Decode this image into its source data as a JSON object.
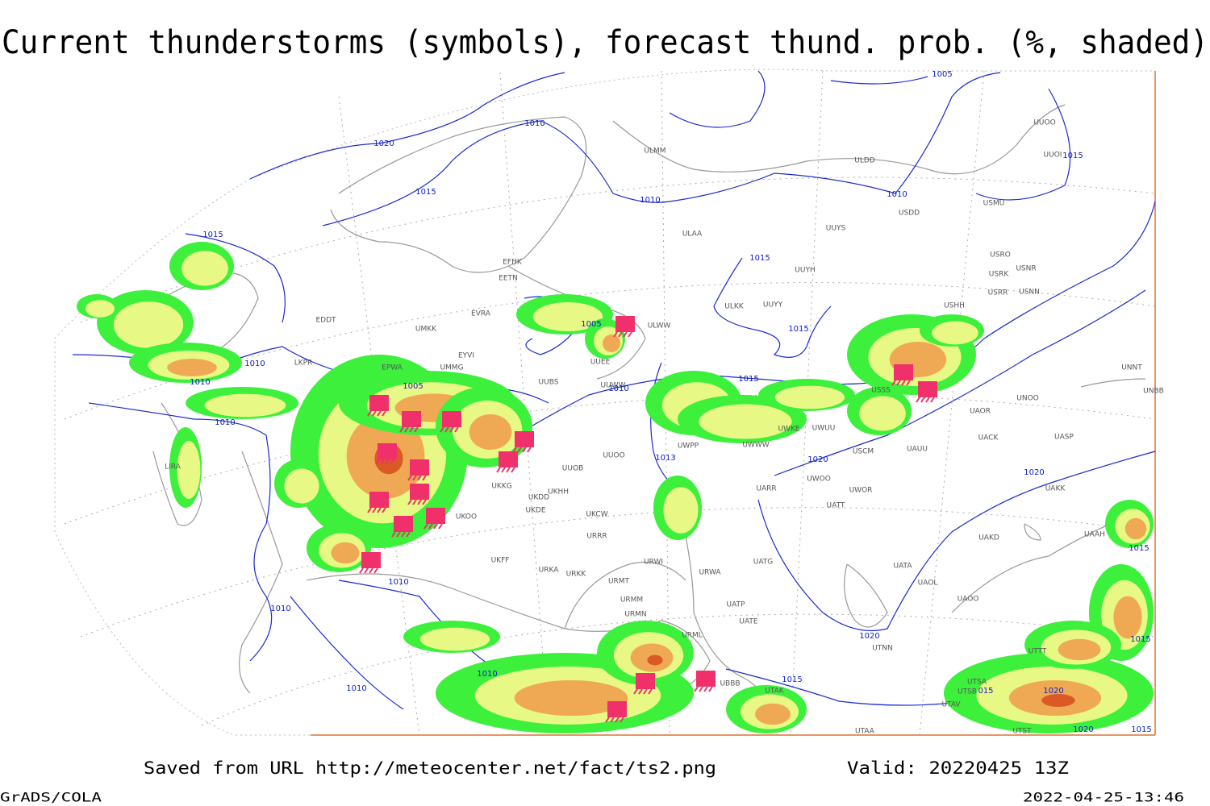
{
  "header": {
    "title": "Current thunderstorms (symbols), forecast thund. prob. (%, shaded)"
  },
  "footer": {
    "source": "Saved from URL http://meteocenter.net/fact/ts2.png",
    "valid": "Valid: 20220425 13Z",
    "software": "GrADS/COLA",
    "timestamp": "2022-04-25-13:46"
  },
  "map": {
    "stations": [
      "ULMM",
      "ULDD",
      "UUOO",
      "UUOI",
      "USMU",
      "USDD",
      "ULAA",
      "UUYS",
      "USRO",
      "USRK",
      "USNR",
      "USRR",
      "USNN",
      "USHH",
      "UUYH",
      "ULKK",
      "UUYY",
      "ULWW",
      "UUEE",
      "EFHK",
      "EETN",
      "EVRA",
      "UMKK",
      "EYVI",
      "UMMG",
      "EPWA",
      "EDDT",
      "LKPR",
      "UUWW",
      "UUBS",
      "UWPP",
      "UUOO",
      "UUOB",
      "UKHH",
      "UKDD",
      "UKDE",
      "UKKG",
      "UKOO",
      "UKCW",
      "URRR",
      "UKFF",
      "URKA",
      "URKK",
      "URMT",
      "URWI",
      "URMM",
      "URMN",
      "URML",
      "URWA",
      "UATG",
      "UATT",
      "UWOO",
      "UWOR",
      "UARR",
      "USCM",
      "UAUU",
      "UACK",
      "UASP",
      "UAKK",
      "UAKD",
      "UAAH",
      "UATA",
      "UAOL",
      "UAOO",
      "UTNN",
      "UATP",
      "UATE",
      "UBBB",
      "UTAK",
      "UTAA",
      "UTAV",
      "UTSB",
      "UTSA",
      "UTST",
      "UTTT",
      "UNNT",
      "UNBB",
      "UNOO",
      "UAOR",
      "LIRA",
      "USSS",
      "UWUU",
      "UWKE",
      "UWWW"
    ],
    "isobars": [
      "1005",
      "1010",
      "1020",
      "1015",
      "1010",
      "1010",
      "1015",
      "1015",
      "1015",
      "1015",
      "1005",
      "1010",
      "1010",
      "1005",
      "1010",
      "1015",
      "1010",
      "1013",
      "1020",
      "1020",
      "1010",
      "1010",
      "1015",
      "1015",
      "1020",
      "1010",
      "1010",
      "1015",
      "1020",
      "1020",
      "1015",
      "015"
    ]
  }
}
